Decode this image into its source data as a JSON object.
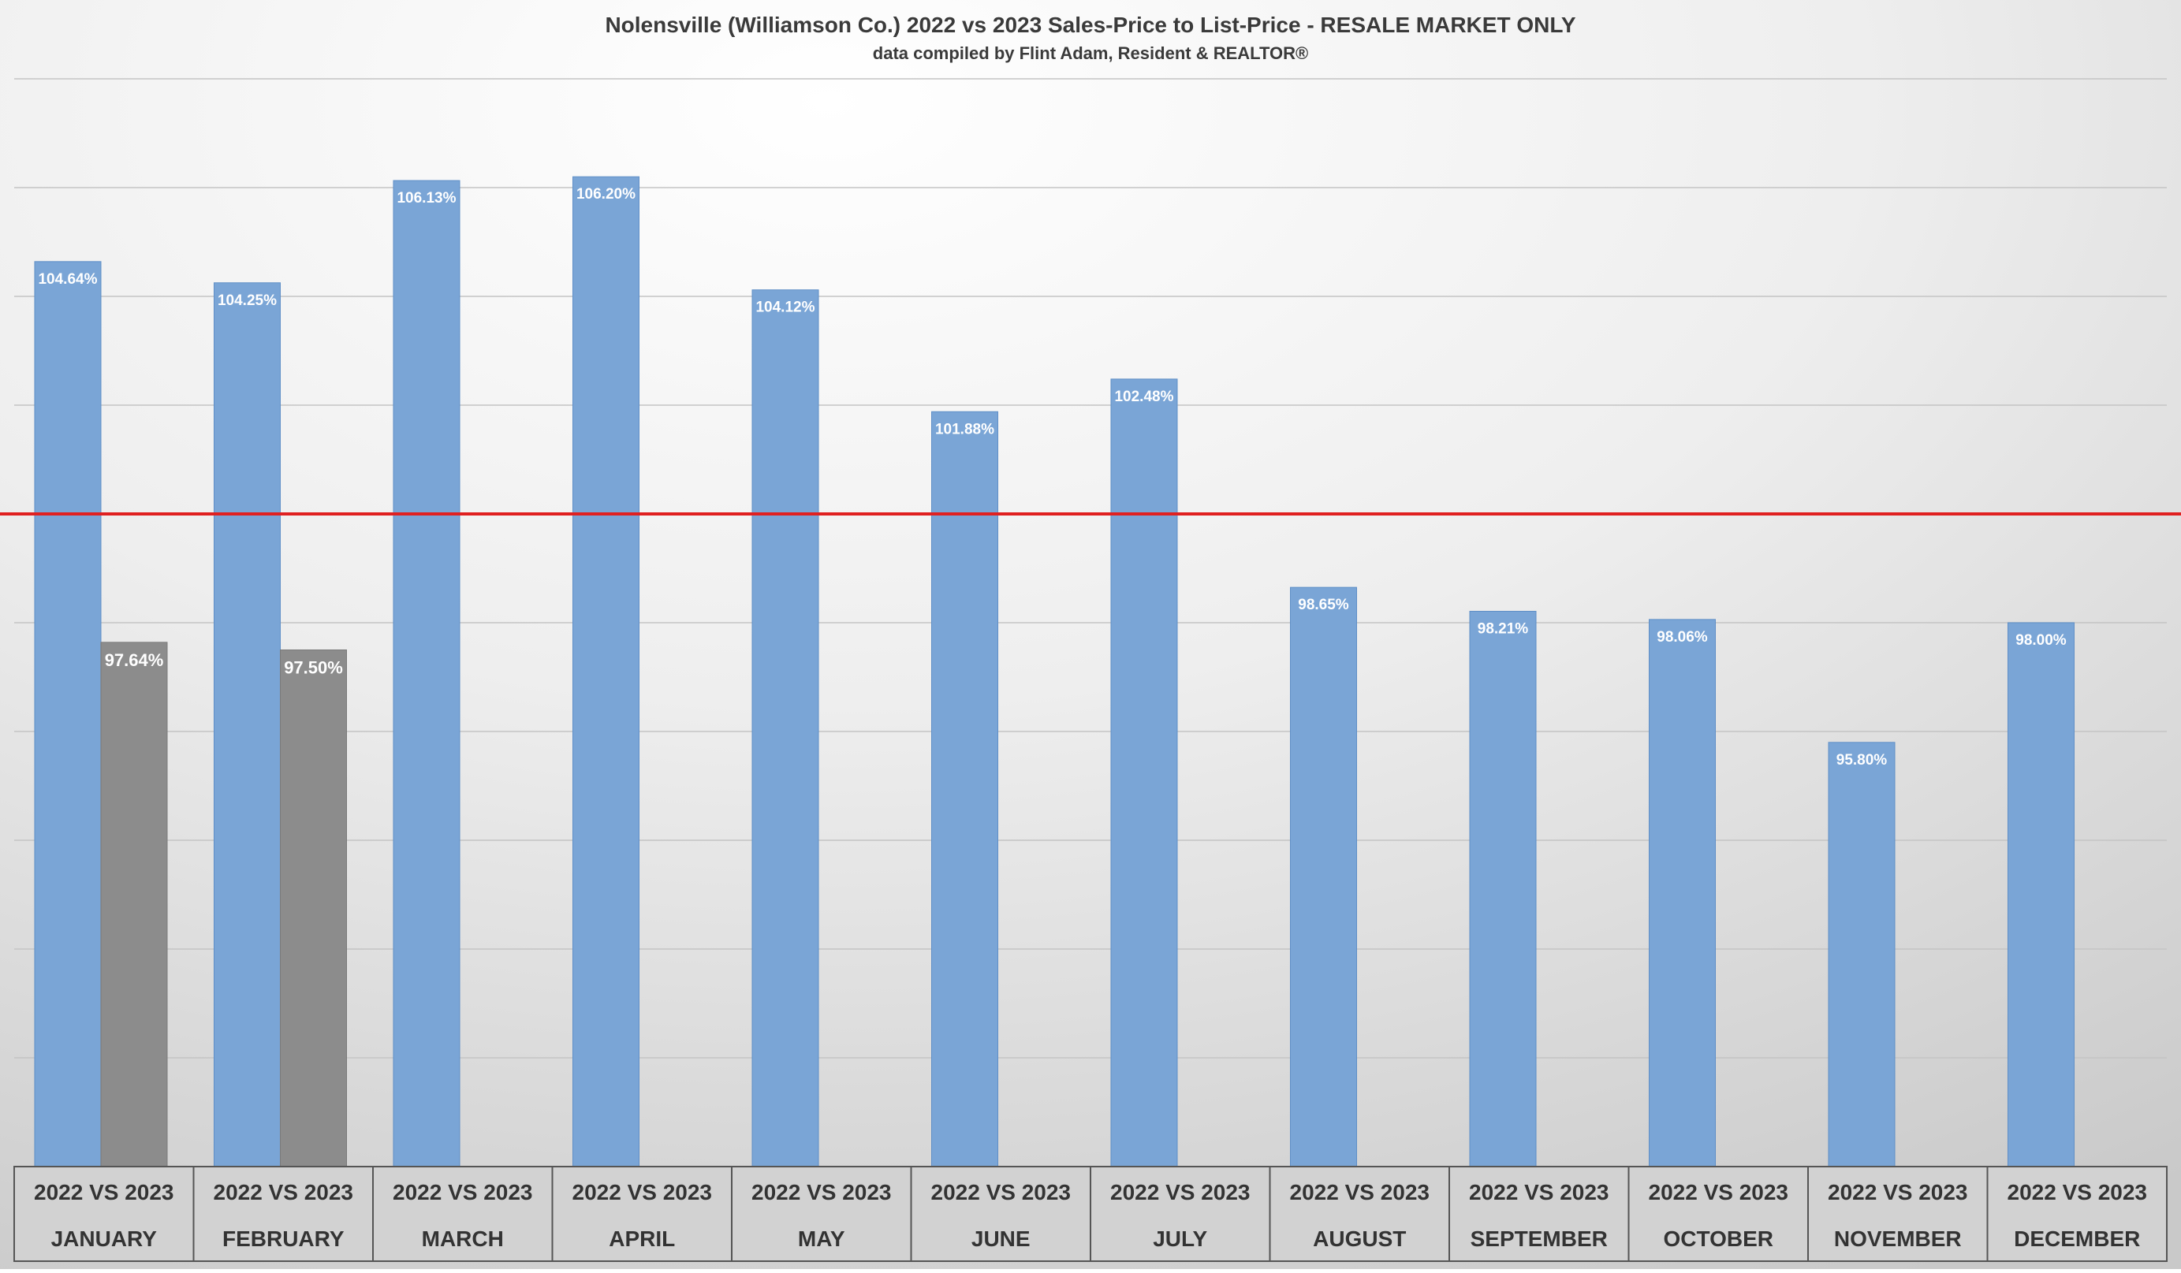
{
  "chart_data": {
    "type": "bar",
    "title": "Nolensville (Williamson Co.) 2022 vs 2023 Sales-Price to List-Price - RESALE MARKET ONLY",
    "subtitle": "data compiled by Flint Adam, Resident & REALTOR®",
    "categories": [
      "JANUARY",
      "FEBRUARY",
      "MARCH",
      "APRIL",
      "MAY",
      "JUNE",
      "JULY",
      "AUGUST",
      "SEPTEMBER",
      "OCTOBER",
      "NOVEMBER",
      "DECEMBER"
    ],
    "category_group_label": "2022 VS 2023",
    "series": [
      {
        "color": "#7aa5d6",
        "values": [
          104.64,
          104.25,
          106.13,
          106.2,
          104.12,
          101.88,
          102.48,
          98.65,
          98.21,
          98.06,
          95.8,
          98.0
        ],
        "labels": [
          "104.64%",
          "104.25%",
          "106.13%",
          "106.20%",
          "104.12%",
          "101.88%",
          "102.48%",
          "98.65%",
          "98.21%",
          "98.06%",
          "95.80%",
          "98.00%"
        ]
      },
      {
        "color": "#8c8c8c",
        "values": [
          97.64,
          97.5,
          null,
          null,
          null,
          null,
          null,
          null,
          null,
          null,
          null,
          null
        ],
        "labels": [
          "97.64%",
          "97.50%",
          "",
          "",
          "",
          "",
          "",
          "",
          "",
          "",
          "",
          ""
        ]
      }
    ],
    "ylim": [
      88,
      108
    ],
    "gridlines": [
      90,
      92,
      94,
      96,
      98,
      100,
      102,
      104,
      106,
      108
    ],
    "reference_line": {
      "value": 100,
      "color": "#e02020"
    },
    "y_axis_tick_labels": "none",
    "legend": "none",
    "grid": true
  }
}
